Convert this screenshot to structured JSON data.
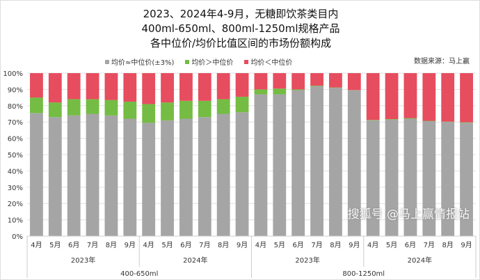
{
  "chart_data": {
    "type": "bar",
    "stacked": true,
    "title_lines": [
      "2023、2024年4-9月，无糖即饮茶类目内",
      "400ml-650ml、800ml-1250ml规格产品",
      "各中位价/均价比值区间的市场份额构成"
    ],
    "source": "数据来源：马上赢",
    "ylim": [
      0,
      100
    ],
    "yticks": [
      "0%",
      "10%",
      "20%",
      "30%",
      "40%",
      "50%",
      "60%",
      "70%",
      "80%",
      "90%",
      "100%"
    ],
    "categories": [
      "4月",
      "5月",
      "6月",
      "7月",
      "8月",
      "9月",
      "4月",
      "5月",
      "6月",
      "7月",
      "8月",
      "9月",
      "4月",
      "5月",
      "6月",
      "7月",
      "8月",
      "9月",
      "4月",
      "5月",
      "6月",
      "7月",
      "8月",
      "9月"
    ],
    "year_groups": [
      "2023年",
      "2024年",
      "2023年",
      "2024年"
    ],
    "size_groups": [
      "400-650ml",
      "800-1250ml"
    ],
    "series": [
      {
        "name": "均价≈中位价(±3%)",
        "color": "#a5a5a5",
        "values": [
          75.5,
          73,
          74,
          75,
          74,
          72,
          69.5,
          71,
          72,
          73,
          75,
          76,
          87,
          87,
          89.5,
          92,
          91,
          89.5,
          71,
          71.5,
          72,
          70.5,
          70,
          69.5
        ]
      },
      {
        "name": "均价＞中位价",
        "color": "#74bc43",
        "values": [
          9.5,
          9,
          10,
          9,
          9.5,
          10.5,
          11.5,
          11,
          11,
          10,
          9,
          9.5,
          3,
          3.5,
          0.5,
          0.3,
          0.2,
          0.1,
          0.3,
          0.3,
          0.4,
          0.2,
          0.2,
          0.3
        ]
      },
      {
        "name": "均价＜中位价",
        "color": "#e64d5f",
        "values": [
          15,
          18,
          16,
          16,
          16.5,
          17.5,
          19,
          18,
          17,
          17,
          16,
          14.5,
          10,
          9.5,
          10,
          7.7,
          8.8,
          10.4,
          28.7,
          28.2,
          27.6,
          29.3,
          29.8,
          30.2
        ]
      }
    ]
  },
  "watermark": "搜狐号 @马上赢情报站"
}
